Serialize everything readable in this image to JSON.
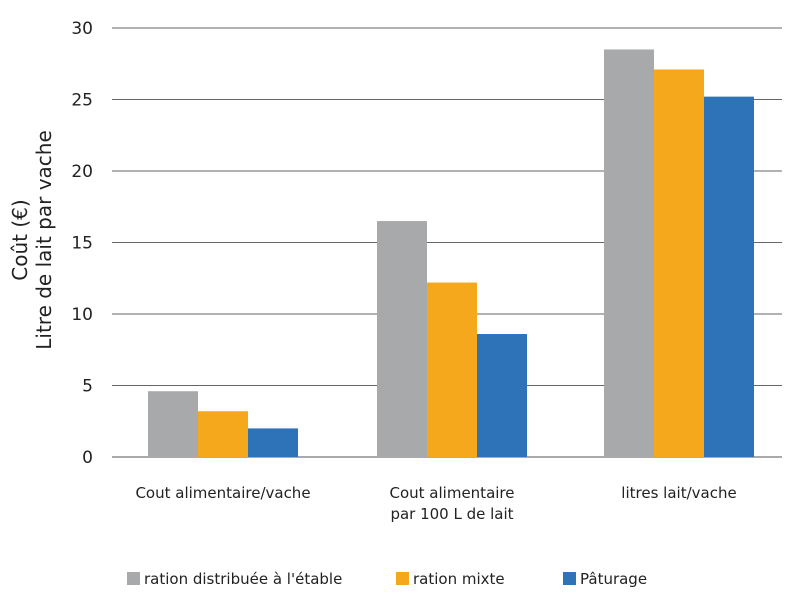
{
  "chart_data": {
    "type": "bar",
    "ylabel": [
      "Coût (€)",
      "Litre de lait par vache"
    ],
    "ylim": [
      0,
      30
    ],
    "yticks": [
      0,
      5,
      10,
      15,
      20,
      25,
      30
    ],
    "grid": true,
    "legend_position": "bottom",
    "categories": [
      [
        "Cout alimentaire/vache"
      ],
      [
        "Cout alimentaire",
        "par 100 L  de lait"
      ],
      [
        "litres lait/vache"
      ]
    ],
    "series": [
      {
        "name": "ration distribuée à l'étable",
        "color": "#a8a9ab",
        "values": [
          4.6,
          16.5,
          28.5
        ]
      },
      {
        "name": "ration mixte",
        "color": "#f5a81c",
        "values": [
          3.2,
          12.2,
          27.1
        ]
      },
      {
        "name": "Pâturage",
        "color": "#2e72b8",
        "values": [
          2.0,
          8.6,
          25.2
        ]
      }
    ]
  }
}
